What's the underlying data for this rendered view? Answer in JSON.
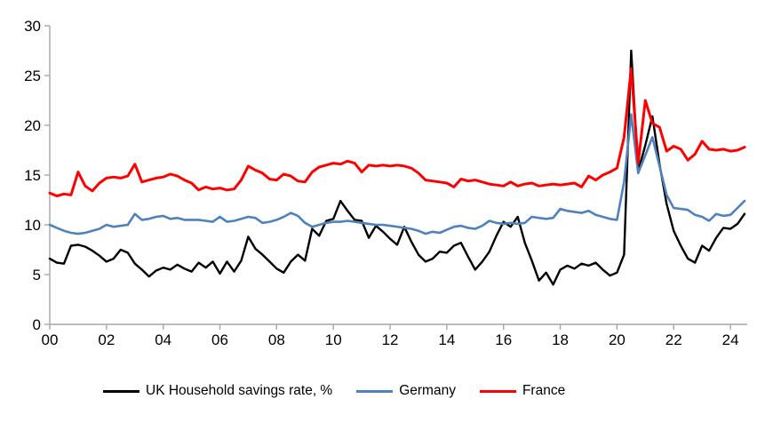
{
  "chart_data": {
    "type": "line",
    "title": "",
    "frequency": "quarterly",
    "x_start": "2000Q1",
    "x_end": "2024Q3",
    "x_tick_labels": [
      "00",
      "02",
      "04",
      "06",
      "08",
      "10",
      "12",
      "14",
      "16",
      "18",
      "20",
      "22",
      "24"
    ],
    "y_tick_labels": [
      "0",
      "5",
      "10",
      "15",
      "20",
      "25",
      "30"
    ],
    "y_tick_values": [
      0,
      5,
      10,
      15,
      20,
      25,
      30
    ],
    "ylim": [
      0,
      30
    ],
    "grid": false,
    "legend_position": "bottom",
    "axis_color": "#a6a6a6",
    "series": [
      {
        "id": "uk",
        "name": "UK Household savings rate, %",
        "color": "#000000",
        "values": [
          6.6,
          6.2,
          6.1,
          7.9,
          8.0,
          7.8,
          7.4,
          6.9,
          6.3,
          6.6,
          7.5,
          7.2,
          6.1,
          5.5,
          4.8,
          5.4,
          5.7,
          5.5,
          6.0,
          5.6,
          5.3,
          6.2,
          5.7,
          6.3,
          5.1,
          6.3,
          5.3,
          6.4,
          8.8,
          7.6,
          7.0,
          6.3,
          5.6,
          5.2,
          6.3,
          7.0,
          6.4,
          9.6,
          8.9,
          10.4,
          10.6,
          12.4,
          11.4,
          10.5,
          10.4,
          8.7,
          9.9,
          9.3,
          8.6,
          8.0,
          9.8,
          8.3,
          7.0,
          6.3,
          6.6,
          7.3,
          7.2,
          7.9,
          8.2,
          6.8,
          5.5,
          6.3,
          7.3,
          8.9,
          10.3,
          9.8,
          10.8,
          8.2,
          6.4,
          4.4,
          5.2,
          4.0,
          5.5,
          5.9,
          5.6,
          6.1,
          5.9,
          6.2,
          5.5,
          4.9,
          5.2,
          7.0,
          27.5,
          15.4,
          18.0,
          20.9,
          16.1,
          12.1,
          9.4,
          7.9,
          6.6,
          6.2,
          7.9,
          7.4,
          8.7,
          9.7,
          9.6,
          10.1,
          11.1
        ]
      },
      {
        "id": "germany",
        "name": "Germany",
        "color": "#4f81bd",
        "values": [
          10.0,
          9.7,
          9.4,
          9.2,
          9.1,
          9.2,
          9.4,
          9.6,
          10.0,
          9.8,
          9.9,
          10.0,
          11.1,
          10.5,
          10.6,
          10.8,
          10.9,
          10.6,
          10.7,
          10.5,
          10.5,
          10.5,
          10.4,
          10.3,
          10.8,
          10.3,
          10.4,
          10.6,
          10.8,
          10.7,
          10.2,
          10.3,
          10.5,
          10.8,
          11.2,
          10.9,
          10.2,
          9.8,
          10.0,
          10.2,
          10.3,
          10.3,
          10.4,
          10.3,
          10.2,
          10.1,
          10.0,
          10.0,
          9.9,
          9.8,
          9.7,
          9.6,
          9.4,
          9.1,
          9.3,
          9.2,
          9.5,
          9.8,
          9.9,
          9.7,
          9.6,
          9.9,
          10.4,
          10.2,
          10.1,
          10.2,
          10.1,
          10.2,
          10.8,
          10.7,
          10.6,
          10.7,
          11.6,
          11.4,
          11.3,
          11.2,
          11.4,
          11.0,
          10.8,
          10.6,
          10.5,
          14.3,
          21.1,
          15.2,
          17.0,
          18.8,
          15.9,
          13.0,
          11.7,
          11.6,
          11.5,
          11.0,
          10.8,
          10.4,
          11.1,
          10.9,
          11.0,
          11.7,
          12.4
        ]
      },
      {
        "id": "france",
        "name": "France",
        "color": "#ff0000",
        "values": [
          13.2,
          12.9,
          13.1,
          13.0,
          15.3,
          13.9,
          13.4,
          14.2,
          14.7,
          14.8,
          14.7,
          14.9,
          16.1,
          14.3,
          14.5,
          14.7,
          14.8,
          15.1,
          14.9,
          14.5,
          14.2,
          13.5,
          13.8,
          13.6,
          13.7,
          13.5,
          13.6,
          14.5,
          15.9,
          15.5,
          15.2,
          14.6,
          14.5,
          15.1,
          14.9,
          14.4,
          14.3,
          15.3,
          15.8,
          16.0,
          16.2,
          16.1,
          16.4,
          16.2,
          15.3,
          16.0,
          15.9,
          16.0,
          15.9,
          16.0,
          15.9,
          15.7,
          15.2,
          14.5,
          14.4,
          14.3,
          14.2,
          13.8,
          14.6,
          14.4,
          14.5,
          14.3,
          14.1,
          14.0,
          13.9,
          14.3,
          13.9,
          14.1,
          14.2,
          13.9,
          14.0,
          14.1,
          14.0,
          14.1,
          14.2,
          13.8,
          14.9,
          14.5,
          15.0,
          15.3,
          15.7,
          18.8,
          25.7,
          16.2,
          22.5,
          20.2,
          19.8,
          17.4,
          17.9,
          17.6,
          16.5,
          17.1,
          18.4,
          17.6,
          17.5,
          17.6,
          17.4,
          17.5,
          17.8
        ]
      }
    ]
  }
}
